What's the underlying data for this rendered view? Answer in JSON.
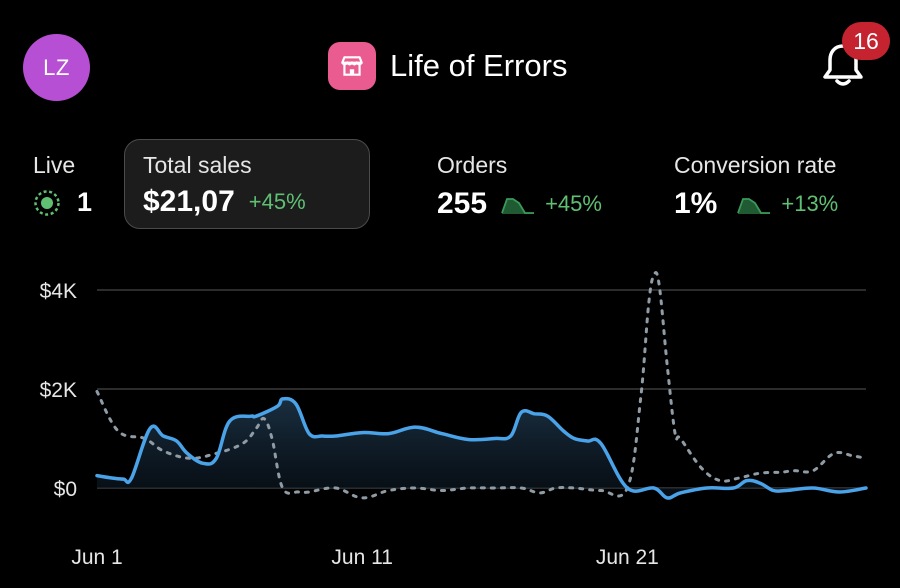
{
  "header": {
    "avatar_initials": "LZ",
    "store_title": "Life of Errors",
    "store_icon": "storefront-icon",
    "notification_count": "16"
  },
  "metrics": {
    "live": {
      "label": "Live",
      "value": "1"
    },
    "total_sales": {
      "label": "Total sales",
      "value": "$21,07",
      "change": "+45%"
    },
    "orders": {
      "label": "Orders",
      "value": "255",
      "change": "+45%"
    },
    "conversion": {
      "label": "Conversion rate",
      "value": "1%",
      "change": "+13%"
    }
  },
  "colors": {
    "accent_current": "#4aa3e8",
    "accent_previous": "#8f9ca5",
    "positive": "#5fbf73",
    "badge": "#c4232f",
    "avatar": "#b74fd4",
    "store_icon": "#ea5b8f"
  },
  "chart_data": {
    "type": "line",
    "ylim": [
      0,
      4000
    ],
    "yticks": [
      {
        "value": 0,
        "label": "$0"
      },
      {
        "value": 2000,
        "label": "$2K"
      },
      {
        "value": 4000,
        "label": "$4K"
      }
    ],
    "xticks": [
      {
        "day": 1,
        "label": "Jun 1"
      },
      {
        "day": 11,
        "label": "Jun 11"
      },
      {
        "day": 21,
        "label": "Jun 21"
      }
    ],
    "grid": true,
    "series": [
      {
        "style": "solid",
        "x": [
          1,
          1.6,
          2,
          2.3,
          3,
          3.5,
          4,
          4.4,
          5,
          5.5,
          6,
          6.8,
          7,
          7.8,
          8,
          8.5,
          9,
          9.5,
          10,
          11,
          12,
          13,
          14,
          15,
          16,
          16.6,
          17,
          17.5,
          18,
          18.6,
          19,
          19.5,
          20,
          21,
          22,
          22.5,
          23,
          24,
          25,
          25.5,
          26,
          26.5,
          27,
          28,
          29,
          30
        ],
        "y": [
          250,
          200,
          180,
          200,
          1200,
          1050,
          950,
          700,
          500,
          600,
          1350,
          1450,
          1450,
          1650,
          1800,
          1700,
          1100,
          1050,
          1050,
          1120,
          1100,
          1230,
          1100,
          980,
          1000,
          1050,
          1530,
          1500,
          1450,
          1150,
          1000,
          950,
          900,
          0,
          0,
          -200,
          -100,
          0,
          0,
          150,
          100,
          -50,
          -50,
          0,
          -80,
          0
        ]
      },
      {
        "style": "dashed",
        "x": [
          1,
          1.8,
          2.8,
          3.5,
          4.5,
          5.5,
          6.5,
          7,
          7.3,
          7.6,
          8,
          8.6,
          9,
          10,
          11,
          12,
          13,
          14,
          15,
          16,
          17,
          17.7,
          18.3,
          19,
          20,
          21,
          21.5,
          21.8,
          22,
          22.2,
          22.5,
          22.8,
          23,
          23.8,
          24.5,
          25.2,
          26,
          26.8,
          27.3,
          28,
          28.8,
          29.5,
          30
        ],
        "y": [
          1950,
          1150,
          1000,
          750,
          600,
          700,
          900,
          1200,
          1400,
          1000,
          0,
          -80,
          -80,
          0,
          -200,
          -50,
          0,
          -50,
          0,
          0,
          0,
          -100,
          0,
          0,
          -50,
          0,
          1800,
          3700,
          4300,
          4100,
          2500,
          1100,
          1000,
          400,
          150,
          200,
          300,
          320,
          350,
          350,
          700,
          650,
          600
        ]
      }
    ]
  }
}
